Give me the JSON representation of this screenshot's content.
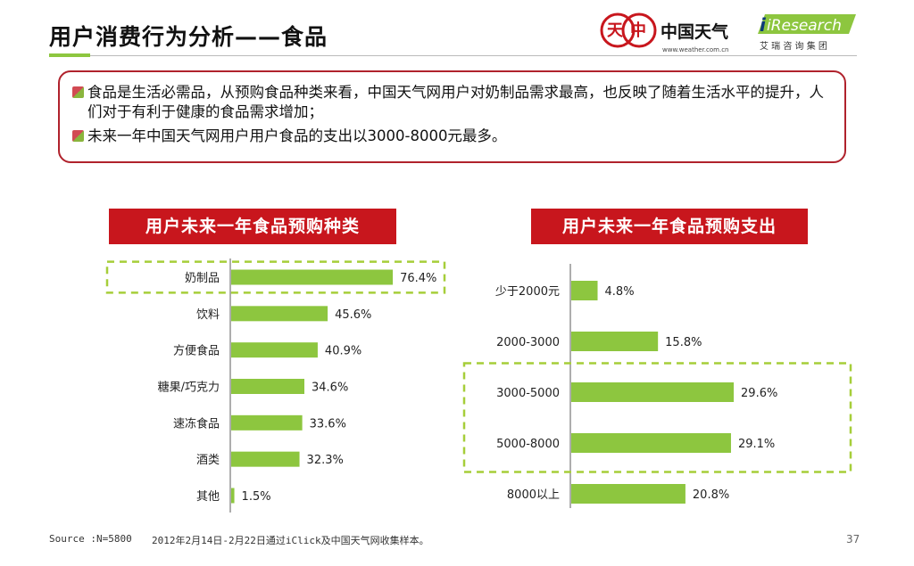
{
  "header": {
    "title": "用户消费行为分析——食品",
    "weather_logo": {
      "text": "中国天气",
      "url": "www.weather.com.cn"
    },
    "iresearch_logo": {
      "brand": "iResearch",
      "subtitle": "艾 瑞 咨 询 集 团"
    }
  },
  "summary": {
    "bullets": [
      "食品是生活必需品，从预购食品种类来看，中国天气网用户对奶制品需求最高，也反映了随着生活水平的提升，人们对于有利于健康的食品需求增加；",
      "未来一年中国天气网用户用户食品的支出以3000-8000元最多。"
    ]
  },
  "colors": {
    "bar": "#8dc63f",
    "accent_red": "#c8161d",
    "highlight_dash": "#a6ce39"
  },
  "chart_data": [
    {
      "type": "bar",
      "orientation": "horizontal",
      "title": "用户未来一年食品预购种类",
      "categories": [
        "奶制品",
        "饮料",
        "方便食品",
        "糖果/巧克力",
        "速冻食品",
        "酒类",
        "其他"
      ],
      "values": [
        76.4,
        45.6,
        40.9,
        34.6,
        33.6,
        32.3,
        1.5
      ],
      "value_labels": [
        "76.4%",
        "45.6%",
        "40.9%",
        "34.6%",
        "33.6%",
        "32.3%",
        "1.5%"
      ],
      "unit": "%",
      "highlighted": [
        "奶制品"
      ]
    },
    {
      "type": "bar",
      "orientation": "horizontal",
      "title": "用户未来一年食品预购支出",
      "categories": [
        "少于2000元",
        "2000-3000",
        "3000-5000",
        "5000-8000",
        "8000以上"
      ],
      "values": [
        4.8,
        15.8,
        29.6,
        29.1,
        20.8
      ],
      "value_labels": [
        "4.8%",
        "15.8%",
        "29.6%",
        "29.1%",
        "20.8%"
      ],
      "unit": "%",
      "highlighted": [
        "3000-5000",
        "5000-8000"
      ]
    }
  ],
  "footer": {
    "source": "Source :N=5800",
    "note": "2012年2月14日-2月22日通过iClick及中国天气网收集样本。",
    "page": "37"
  }
}
